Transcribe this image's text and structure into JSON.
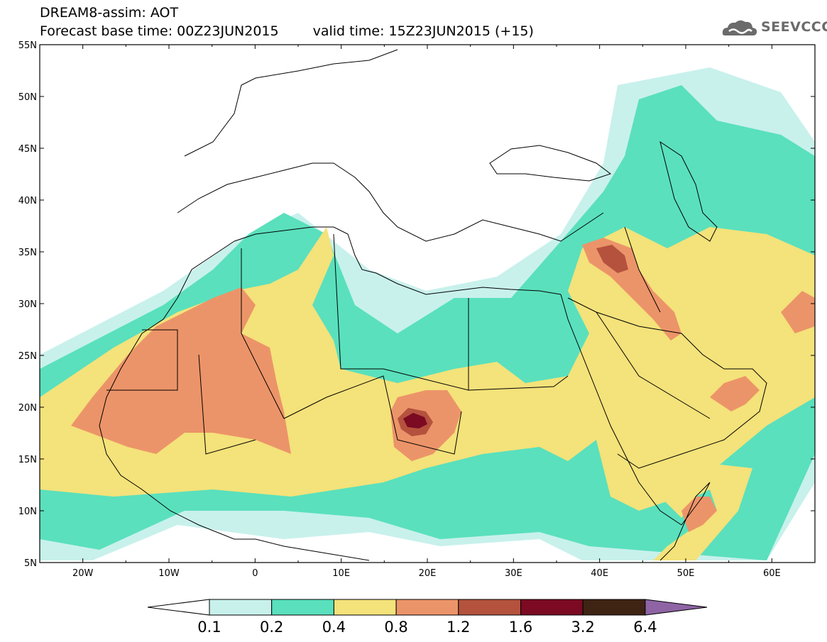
{
  "header": {
    "title_line1": "DREAM8-assim: AOT",
    "base_time": "Forecast base time: 00Z23JUN2015",
    "valid_time": "valid time: 15Z23JUN2015 (+15)"
  },
  "logo": {
    "text": "SEEVCCC",
    "icon": "cloud-icon"
  },
  "map": {
    "lat_labels": [
      "55N",
      "50N",
      "45N",
      "40N",
      "35N",
      "30N",
      "25N",
      "20N",
      "15N",
      "10N",
      "5N"
    ],
    "lon_labels": [
      "20W",
      "10W",
      "0",
      "10E",
      "20E",
      "30E",
      "40E",
      "50E",
      "60E"
    ],
    "lon_range": [
      -25,
      65
    ],
    "lat_range": [
      5,
      55
    ]
  },
  "colorbar": {
    "labels": [
      "0.1",
      "0.2",
      "0.4",
      "0.8",
      "1.2",
      "1.6",
      "3.2",
      "6.4"
    ],
    "colors": [
      "#ffffff",
      "#c8f1ec",
      "#5ae0bd",
      "#f4e27a",
      "#ec9469",
      "#b4523e",
      "#7b0a22",
      "#3f2414",
      "#8e64a4"
    ]
  }
}
